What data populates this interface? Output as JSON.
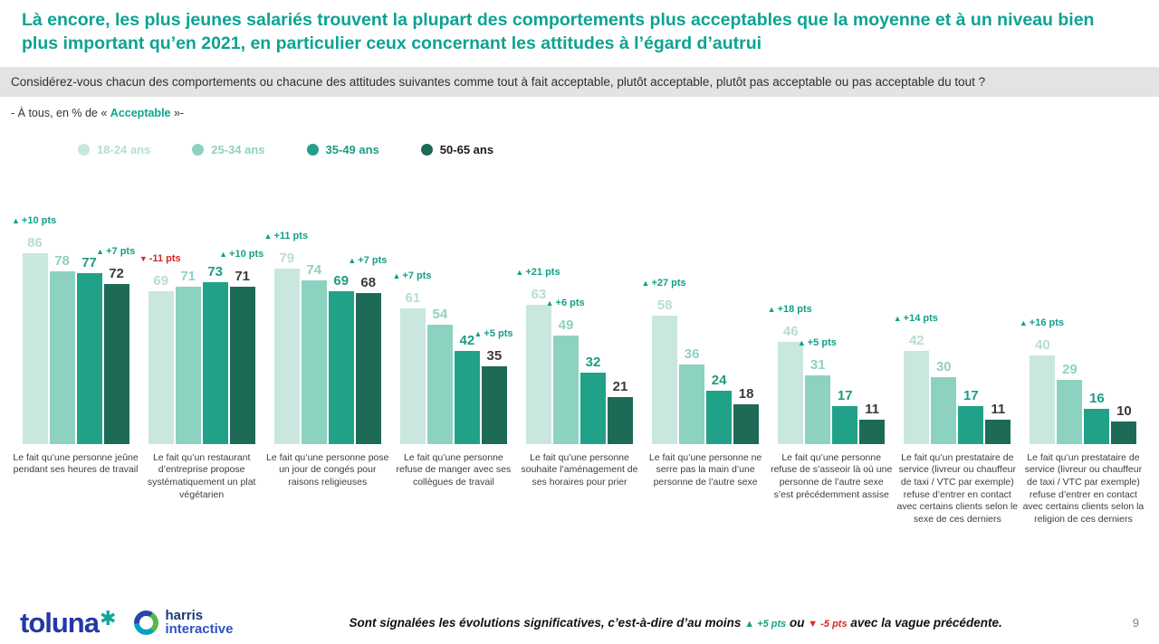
{
  "title": "Là encore, les plus jeunes salariés trouvent la plupart des comportements plus acceptables que la moyenne et à un niveau bien plus important qu’en 2021, en particulier ceux concernant les attitudes à l’égard d’autrui",
  "question": "Considérez-vous chacun des comportements ou chacune des attitudes suivantes comme tout à fait acceptable, plutôt acceptable, plutôt pas acceptable ou pas acceptable du tout ?",
  "subtitle": {
    "prefix": "- À tous, en %  de « ",
    "highlight": "Acceptable",
    "suffix": " »-"
  },
  "legend": [
    {
      "label": "18-24 ans",
      "color": "#c9e7df",
      "text_color": "#b9ddd2"
    },
    {
      "label": "25-34 ans",
      "color": "#8dd2c1",
      "text_color": "#8dd2c1"
    },
    {
      "label": "35-49 ans",
      "color": "#22a189",
      "text_color": "#1c9c82"
    },
    {
      "label": "50-65 ans",
      "color": "#1d6b57",
      "text_color": "#1a1a1a"
    }
  ],
  "chart_data": {
    "type": "bar",
    "unit": "%",
    "ylim": [
      0,
      100
    ],
    "legend_position": "top",
    "series": [
      {
        "name": "18-24 ans",
        "color": "#c9e7df",
        "label_color": "#b9ddd2"
      },
      {
        "name": "25-34 ans",
        "color": "#8dd2c1",
        "label_color": "#8dd2c1"
      },
      {
        "name": "35-49 ans",
        "color": "#22a189",
        "label_color": "#1c9c82"
      },
      {
        "name": "50-65 ans",
        "color": "#1d6b57",
        "label_color": "#3a3a3a"
      }
    ],
    "groups": [
      {
        "label": "Le fait qu’une personne jeûne pendant ses heures de travail",
        "values": [
          86,
          78,
          77,
          72
        ],
        "annotations": [
          {
            "bar": 0,
            "text": "+10 pts",
            "dir": "up"
          },
          {
            "bar": 3,
            "text": "+7 pts",
            "dir": "up"
          }
        ]
      },
      {
        "label": "Le fait qu’un restaurant d’entreprise propose systématiquement un plat végétarien",
        "values": [
          69,
          71,
          73,
          71
        ],
        "annotations": [
          {
            "bar": 0,
            "text": "-11 pts",
            "dir": "down"
          },
          {
            "bar": 3,
            "text": "+10 pts",
            "dir": "up"
          }
        ]
      },
      {
        "label": "Le fait qu’une personne pose un jour de congés pour raisons religieuses",
        "values": [
          79,
          74,
          69,
          68
        ],
        "annotations": [
          {
            "bar": 0,
            "text": "+11 pts",
            "dir": "up"
          },
          {
            "bar": 3,
            "text": "+7 pts",
            "dir": "up"
          }
        ]
      },
      {
        "label": "Le fait qu’une personne refuse de manger avec ses collègues de travail",
        "values": [
          61,
          54,
          42,
          35
        ],
        "annotations": [
          {
            "bar": 0,
            "text": "+7 pts",
            "dir": "up"
          },
          {
            "bar": 3,
            "text": "+5 pts",
            "dir": "up"
          }
        ]
      },
      {
        "label": "Le fait qu’une personne souhaite l’aménagement de ses horaires pour prier",
        "values": [
          63,
          49,
          32,
          21
        ],
        "annotations": [
          {
            "bar": 0,
            "text": "+21 pts",
            "dir": "up"
          },
          {
            "bar": 1,
            "text": "+6 pts",
            "dir": "up"
          }
        ]
      },
      {
        "label": "Le fait qu’une personne ne serre pas la main d’une personne de l’autre sexe",
        "values": [
          58,
          36,
          24,
          18
        ],
        "annotations": [
          {
            "bar": 0,
            "text": "+27 pts",
            "dir": "up"
          }
        ]
      },
      {
        "label": "Le fait qu’une personne refuse de s’asseoir là où une personne de l’autre sexe s’est précédemment assise",
        "values": [
          46,
          31,
          17,
          11
        ],
        "annotations": [
          {
            "bar": 0,
            "text": "+18 pts",
            "dir": "up"
          },
          {
            "bar": 1,
            "text": "+5 pts",
            "dir": "up"
          }
        ]
      },
      {
        "label": "Le fait qu’un prestataire de service (livreur ou chauffeur de taxi / VTC par exemple) refuse d’entrer en contact avec certains clients selon le sexe de ces derniers",
        "values": [
          42,
          30,
          17,
          11
        ],
        "annotations": [
          {
            "bar": 0,
            "text": "+14 pts",
            "dir": "up"
          }
        ]
      },
      {
        "label": "Le fait qu’un prestataire de service (livreur ou chauffeur de taxi / VTC par exemple) refuse d’entrer en contact avec certains clients selon la religion de ces derniers",
        "values": [
          40,
          29,
          16,
          10
        ],
        "annotations": [
          {
            "bar": 0,
            "text": "+16 pts",
            "dir": "up"
          }
        ]
      }
    ]
  },
  "footer": {
    "toluna": "toluna",
    "toluna_star": "✱",
    "harris_line1": "harris",
    "harris_line2": "interactive",
    "note": {
      "prefix": "Sont signalées les évolutions significatives, c’est-à-dire d’au moins",
      "up": "+5 pts",
      "middle": "ou",
      "down": "-5 pts",
      "suffix": "avec la vague précédente."
    },
    "page_number": "9"
  }
}
